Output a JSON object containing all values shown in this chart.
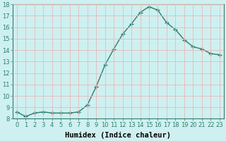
{
  "x": [
    0,
    1,
    2,
    3,
    4,
    5,
    6,
    7,
    8,
    9,
    10,
    11,
    12,
    13,
    14,
    15,
    16,
    17,
    18,
    19,
    20,
    21,
    22,
    23
  ],
  "y": [
    8.6,
    8.2,
    8.5,
    8.6,
    8.5,
    8.5,
    8.5,
    8.6,
    9.2,
    10.8,
    12.7,
    14.1,
    15.4,
    16.3,
    17.3,
    17.8,
    17.5,
    16.4,
    15.8,
    14.9,
    14.3,
    14.1,
    13.7,
    13.6
  ],
  "line_color": "#2e7d6e",
  "marker": "+",
  "marker_size": 4,
  "bg_color": "#cff0f0",
  "grid_color": "#e8b8b8",
  "xlabel": "Humidex (Indice chaleur)",
  "xlim": [
    -0.5,
    23.5
  ],
  "ylim": [
    8,
    18
  ],
  "xticks": [
    0,
    1,
    2,
    3,
    4,
    5,
    6,
    7,
    8,
    9,
    10,
    11,
    12,
    13,
    14,
    15,
    16,
    17,
    18,
    19,
    20,
    21,
    22,
    23
  ],
  "yticks": [
    8,
    9,
    10,
    11,
    12,
    13,
    14,
    15,
    16,
    17,
    18
  ],
  "xlabel_fontsize": 7.5,
  "tick_fontsize": 6,
  "line_width": 1.0
}
